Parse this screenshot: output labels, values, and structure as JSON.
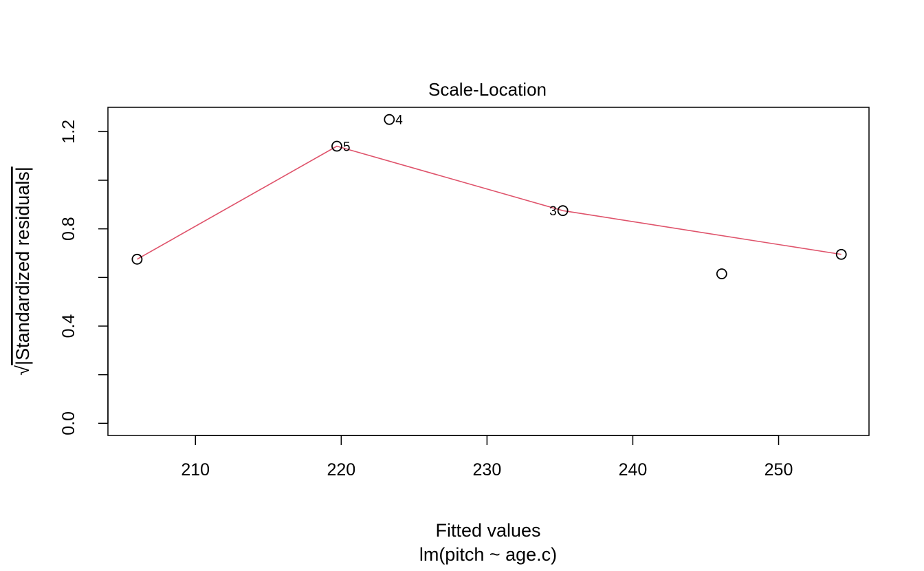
{
  "chart_data": {
    "type": "scatter",
    "title": "Scale-Location",
    "xlabel": "Fitted values",
    "xsublabel": "lm(pitch ~ age.c)",
    "ylabel_radical": "√",
    "ylabel": "|Standardized residuals|",
    "xlim": [
      204.0,
      256.2
    ],
    "ylim": [
      -0.05,
      1.3
    ],
    "xticks": [
      210,
      220,
      230,
      240,
      250
    ],
    "yticks": [
      0.0,
      0.2,
      0.4,
      0.6,
      0.8,
      1.0,
      1.2
    ],
    "ytick_labels": [
      {
        "value": 0.0,
        "label": "0.0"
      },
      {
        "value": 0.4,
        "label": "0.4"
      },
      {
        "value": 0.8,
        "label": "0.8"
      },
      {
        "value": 1.2,
        "label": "1.2"
      }
    ],
    "points": [
      {
        "x": 206.0,
        "y": 0.675,
        "label": ""
      },
      {
        "x": 219.7,
        "y": 1.14,
        "label": "5",
        "label_side": "right"
      },
      {
        "x": 223.3,
        "y": 1.25,
        "label": "4",
        "label_side": "right"
      },
      {
        "x": 235.2,
        "y": 0.875,
        "label": "3",
        "label_side": "left"
      },
      {
        "x": 246.1,
        "y": 0.615,
        "label": ""
      },
      {
        "x": 254.3,
        "y": 0.695,
        "label": ""
      }
    ],
    "smooth_line": {
      "x": [
        206.0,
        219.7,
        235.2,
        254.3
      ],
      "y": [
        0.675,
        1.14,
        0.875,
        0.695
      ]
    },
    "colors": {
      "points": "#000000",
      "smooth": "#DF536B",
      "frame": "#000000"
    }
  }
}
